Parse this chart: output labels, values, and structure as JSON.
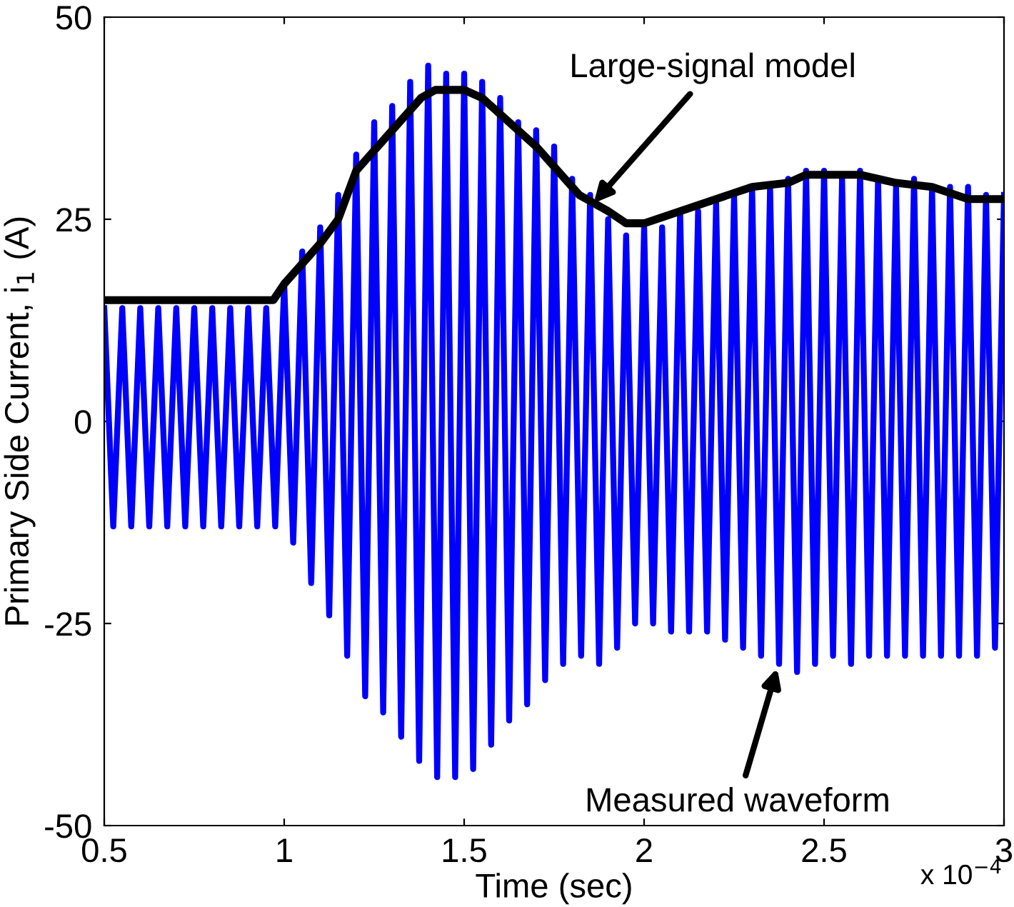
{
  "chart_data": {
    "type": "line",
    "xlabel": "Time (sec)",
    "ylabel": "Primary Side Current, i$_{1}$ (A)",
    "xlim": [
      0.5,
      3
    ],
    "xticks": [
      0.5,
      1,
      1.5,
      2,
      2.5,
      3
    ],
    "ylim": [
      -50,
      50
    ],
    "yticks": [
      -50,
      -25,
      0,
      25,
      50
    ],
    "grid": false,
    "legend": false,
    "marker": "none",
    "line_style": "solid",
    "series": [
      {
        "color": "#0000ff",
        "x": [
          0.5,
          0.525,
          0.55,
          0.575,
          0.6,
          0.625,
          0.65,
          0.675,
          0.7,
          0.725,
          0.75,
          0.775,
          0.8,
          0.825,
          0.85,
          0.875,
          0.9,
          0.925,
          0.95,
          0.975,
          1.0,
          1.025,
          1.05,
          1.075,
          1.1,
          1.125,
          1.15,
          1.175,
          1.2,
          1.225,
          1.25,
          1.275,
          1.3,
          1.325,
          1.35,
          1.375,
          1.4,
          1.425,
          1.45,
          1.475,
          1.5,
          1.525,
          1.55,
          1.575,
          1.6,
          1.625,
          1.65,
          1.675,
          1.7,
          1.725,
          1.75,
          1.775,
          1.8,
          1.825,
          1.85,
          1.875,
          1.9,
          1.925,
          1.95,
          1.975,
          2.0,
          2.025,
          2.05,
          2.075,
          2.1,
          2.125,
          2.15,
          2.175,
          2.2,
          2.225,
          2.25,
          2.275,
          2.3,
          2.325,
          2.35,
          2.375,
          2.4,
          2.425,
          2.45,
          2.475,
          2.5,
          2.525,
          2.55,
          2.575,
          2.6,
          2.625,
          2.65,
          2.675,
          2.7,
          2.725,
          2.75,
          2.775,
          2.8,
          2.825,
          2.85,
          2.875,
          2.9,
          2.925,
          2.95,
          2.975,
          3.0
        ],
        "values": [
          14,
          -13,
          14,
          -13,
          14,
          -13,
          14,
          -13,
          14,
          -13,
          14,
          -13,
          14,
          -13,
          14,
          -13,
          14,
          -13,
          14,
          -13,
          17,
          -15,
          21,
          -20,
          24,
          -24,
          28,
          -29,
          33,
          -34,
          37,
          -36,
          39,
          -39,
          42,
          -42,
          44,
          -44,
          43,
          -44,
          43,
          -43,
          42,
          -40,
          40,
          -37,
          37,
          -35,
          36,
          -32,
          34,
          -30,
          30,
          -29,
          28,
          -30,
          25,
          -28,
          23,
          -25,
          24,
          -25,
          24,
          -26,
          26,
          -26,
          26,
          -26,
          27,
          -27,
          28,
          -28,
          29,
          -29,
          29,
          -30,
          30,
          -31,
          31,
          -30,
          31,
          -29,
          30,
          -30,
          31,
          -29,
          30,
          -29,
          29,
          -29,
          30,
          -29,
          29,
          -29,
          29,
          -29,
          29,
          -29,
          28,
          -28,
          28
        ]
      },
      {
        "color": "#000000",
        "x": [
          0.5,
          0.97,
          1.0,
          1.1,
          1.15,
          1.2,
          1.3,
          1.38,
          1.42,
          1.5,
          1.55,
          1.7,
          1.82,
          1.9,
          1.95,
          2.0,
          2.1,
          2.2,
          2.3,
          2.4,
          2.45,
          2.6,
          2.7,
          2.8,
          2.9,
          3.0
        ],
        "values": [
          15,
          15,
          17,
          22,
          25,
          31,
          36,
          40,
          41,
          41,
          40,
          34,
          28,
          26,
          24.5,
          24.5,
          26,
          27.5,
          29,
          29.5,
          30.5,
          30.5,
          29.5,
          29,
          27.5,
          27.5
        ]
      }
    ],
    "annotations": [
      {
        "text": "Large-signal model",
        "x": 1.86,
        "y": 27
      },
      {
        "text": "Measured waveform",
        "x": 2.37,
        "y": -30.5
      },
      "x 10$^{−4}$"
    ]
  }
}
